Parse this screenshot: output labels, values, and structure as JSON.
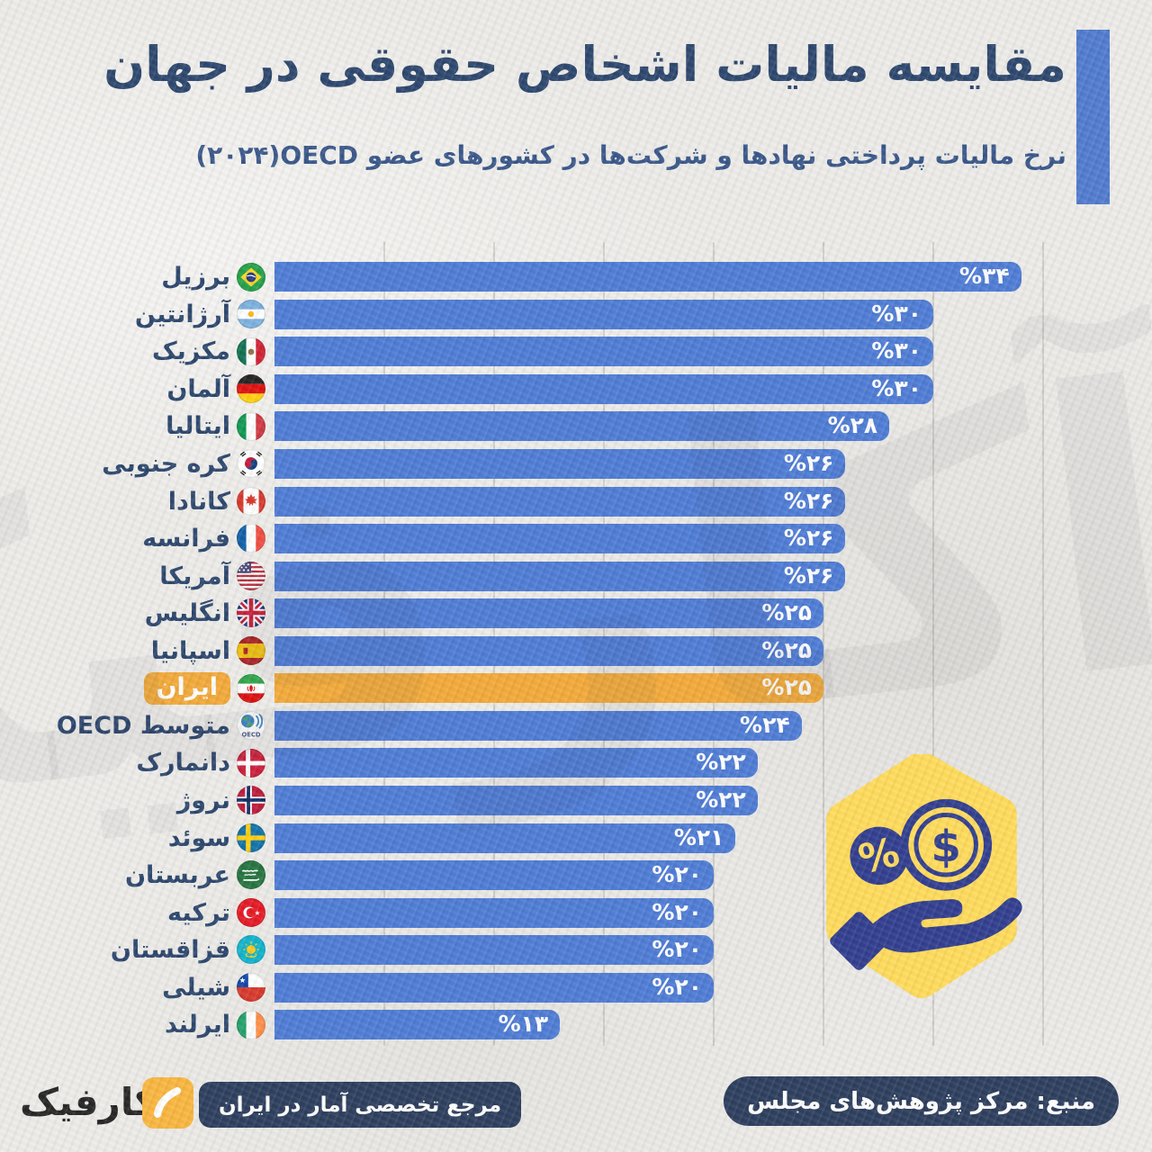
{
  "header": {
    "title": "مقایسه مالیات اشخاص حقوقی در جهان",
    "subtitle": "نرخ مالیات پرداختی نهادها و شرکت‌ها در کشورهای عضو ⁦OECD⁩⁦(۲۰۲۴)⁩"
  },
  "chart_data": {
    "type": "bar",
    "orientation": "horizontal",
    "unit": "%",
    "xlim": [
      0,
      36
    ],
    "grid": true,
    "gridlines_percent": [
      5,
      10,
      15,
      20,
      25,
      30,
      35
    ],
    "categories": [
      "برزیل",
      "آرژانتین",
      "مکزیک",
      "آلمان",
      "ایتالیا",
      "کره جنوبی",
      "کانادا",
      "فرانسه",
      "آمریکا",
      "انگلیس",
      "اسپانیا",
      "ایران",
      "متوسط OECD",
      "دانمارک",
      "نروژ",
      "سوئد",
      "عربستان",
      "ترکیه",
      "قزاقستان",
      "شیلی",
      "ایرلند"
    ],
    "values": [
      34,
      30,
      30,
      30,
      28,
      26,
      26,
      26,
      26,
      25,
      25,
      25,
      24,
      22,
      22,
      21,
      20,
      20,
      20,
      20,
      13
    ],
    "value_labels": [
      "%۳۴",
      "%۳۰",
      "%۳۰",
      "%۳۰",
      "%۲۸",
      "%۲۶",
      "%۲۶",
      "%۲۶",
      "%۲۶",
      "%۲۵",
      "%۲۵",
      "%۲۵",
      "%۲۴",
      "%۲۲",
      "%۲۲",
      "%۲۱",
      "%۲۰",
      "%۲۰",
      "%۲۰",
      "%۲۰",
      "%۱۳"
    ],
    "flags": [
      "brazil",
      "argentina",
      "mexico",
      "germany",
      "italy",
      "south-korea",
      "canada",
      "france",
      "usa",
      "uk",
      "spain",
      "iran",
      "oecd",
      "denmark",
      "norway",
      "sweden",
      "saudi-arabia",
      "turkey",
      "kazakhstan",
      "chile",
      "ireland"
    ],
    "highlight_index": 11,
    "highlight_country": "ایران"
  },
  "footer": {
    "source_label": "منبع: مرکز پژوهش‌های مجلس",
    "brand_name": "آکارفیک",
    "brand_tagline": "مرجع تخصصی آمار در ایران"
  },
  "colors": {
    "bar_blue": "#4273d3",
    "bar_highlight_orange": "#f2a42c",
    "title_navy": "#1e3a64",
    "accent_blue": "#4472cc",
    "badge_navy": "#1e3153",
    "brand_yellow": "#f9b233",
    "icon_yellow": "#ffd951",
    "icon_navy": "#233188"
  }
}
